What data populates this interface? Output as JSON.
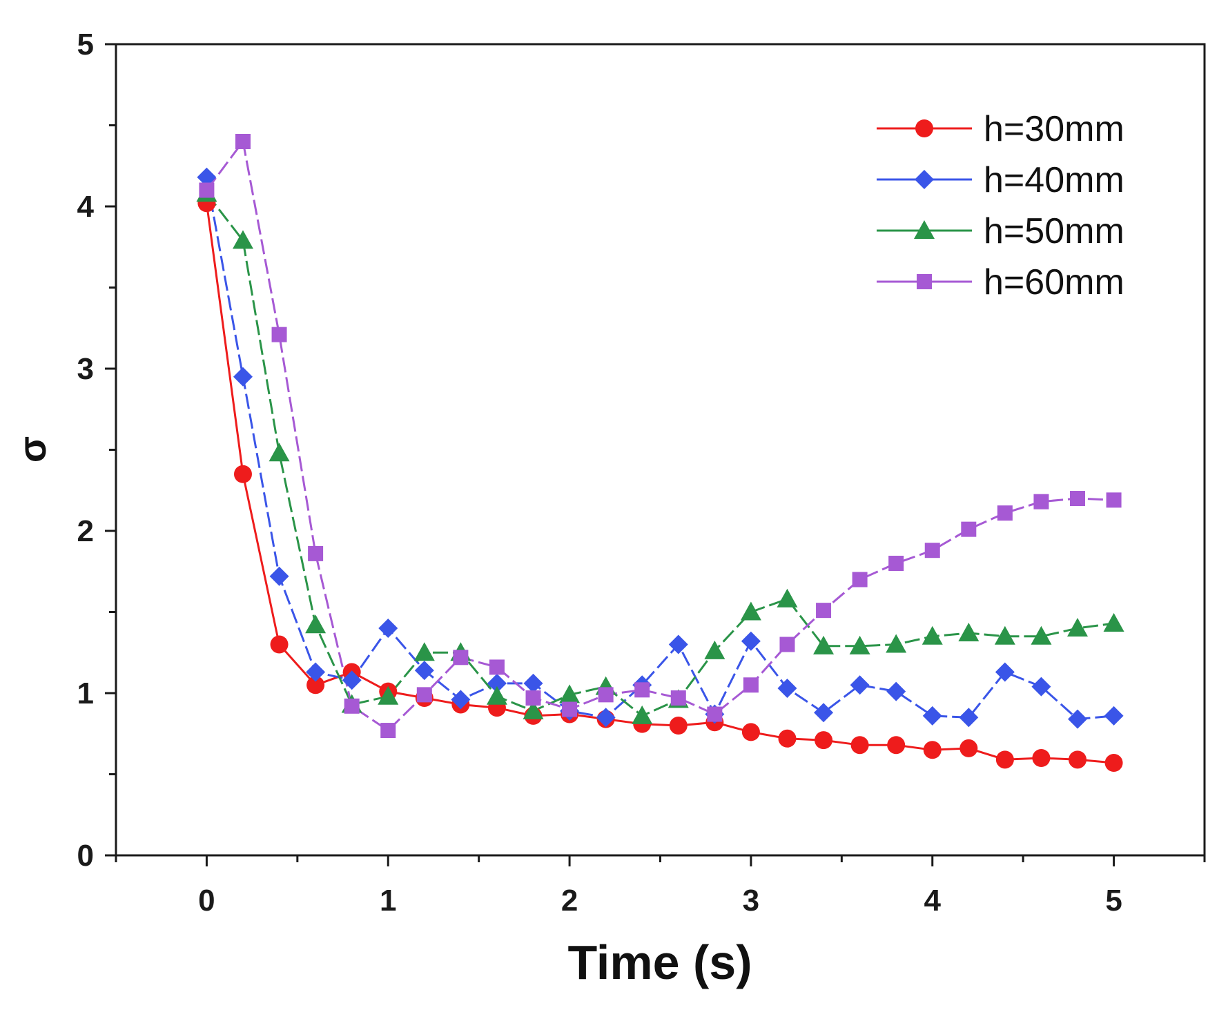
{
  "chart_data": {
    "type": "line",
    "title": "",
    "xlabel": "Time (s)",
    "ylabel": "σ",
    "xlim": [
      -0.5,
      5.5
    ],
    "ylim": [
      0,
      5
    ],
    "x_ticks": [
      "0",
      "1",
      "2",
      "3",
      "4",
      "5"
    ],
    "y_ticks": [
      "0",
      "1",
      "2",
      "3",
      "4",
      "5"
    ],
    "grid": false,
    "legend_position": "top-right",
    "x": [
      0,
      0.2,
      0.4,
      0.6,
      0.8,
      1.0,
      1.2,
      1.4,
      1.6,
      1.8,
      2.0,
      2.2,
      2.4,
      2.6,
      2.8,
      3.0,
      3.2,
      3.4,
      3.6,
      3.8,
      4.0,
      4.2,
      4.4,
      4.6,
      4.8,
      5.0
    ],
    "series": [
      {
        "name": "h=30mm",
        "color": "#ee1c1c",
        "marker": "circle",
        "dashed": false,
        "values": [
          4.02,
          2.35,
          1.3,
          1.05,
          1.13,
          1.01,
          0.97,
          0.93,
          0.91,
          0.86,
          0.87,
          0.84,
          0.81,
          0.8,
          0.82,
          0.76,
          0.72,
          0.71,
          0.68,
          0.68,
          0.65,
          0.66,
          0.59,
          0.6,
          0.59,
          0.57
        ]
      },
      {
        "name": "h=40mm",
        "color": "#3a55e8",
        "marker": "diamond",
        "dashed": true,
        "values": [
          4.18,
          2.95,
          1.72,
          1.13,
          1.08,
          1.4,
          1.14,
          0.96,
          1.06,
          1.06,
          0.89,
          0.85,
          1.05,
          1.3,
          0.87,
          1.32,
          1.03,
          0.88,
          1.05,
          1.01,
          0.86,
          0.85,
          1.13,
          1.04,
          0.84,
          0.86
        ]
      },
      {
        "name": "h=50mm",
        "color": "#2a9448",
        "marker": "triangle",
        "dashed": true,
        "values": [
          4.08,
          3.79,
          2.48,
          1.42,
          0.93,
          0.98,
          1.25,
          1.25,
          0.98,
          0.89,
          0.99,
          1.04,
          0.86,
          0.96,
          1.26,
          1.5,
          1.58,
          1.29,
          1.29,
          1.3,
          1.35,
          1.37,
          1.35,
          1.35,
          1.4,
          1.43
        ]
      },
      {
        "name": "h=60mm",
        "color": "#a659d4",
        "marker": "square",
        "dashed": true,
        "values": [
          4.1,
          4.4,
          3.21,
          1.86,
          0.92,
          0.77,
          0.99,
          1.22,
          1.16,
          0.97,
          0.9,
          0.99,
          1.02,
          0.97,
          0.87,
          1.05,
          1.3,
          1.51,
          1.7,
          1.8,
          1.88,
          2.01,
          2.11,
          2.18,
          2.2,
          2.19
        ]
      }
    ]
  }
}
